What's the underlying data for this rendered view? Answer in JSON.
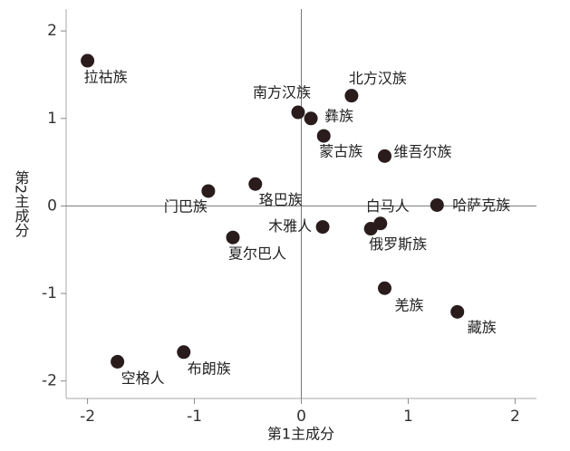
{
  "chart_data": {
    "type": "scatter",
    "xlabel": "第1主成分",
    "ylabel": "第2主成分",
    "labels": [
      "拉祜族",
      "北方汉族",
      "南方汉族",
      "彝族",
      "蒙古族",
      "维吾尔族",
      "门巴族",
      "珞巴族",
      "哈萨克族",
      "白马人",
      "木雅人",
      "俄罗斯族",
      "夏尔巴人",
      "羌族",
      "藏族",
      "布朗族",
      "空格人"
    ],
    "x": [
      -2.0,
      0.47,
      -0.03,
      0.09,
      0.21,
      0.78,
      -0.87,
      -0.43,
      1.27,
      0.74,
      0.2,
      0.65,
      -0.64,
      0.78,
      1.46,
      -1.1,
      -1.72
    ],
    "values": [
      1.66,
      1.26,
      1.07,
      1.0,
      0.8,
      0.57,
      0.17,
      0.25,
      0.01,
      -0.2,
      -0.24,
      -0.26,
      -0.36,
      -0.94,
      -1.21,
      -1.67,
      -1.78
    ],
    "color": "#2a1c1c",
    "xlim": [
      -2.2,
      2.2
    ],
    "ylim": [
      -2.2,
      2.25
    ],
    "xticks": [
      -2,
      -1,
      0,
      1,
      2
    ],
    "yticks": [
      -2,
      -1,
      0,
      1,
      2
    ],
    "reference_lines": true
  }
}
